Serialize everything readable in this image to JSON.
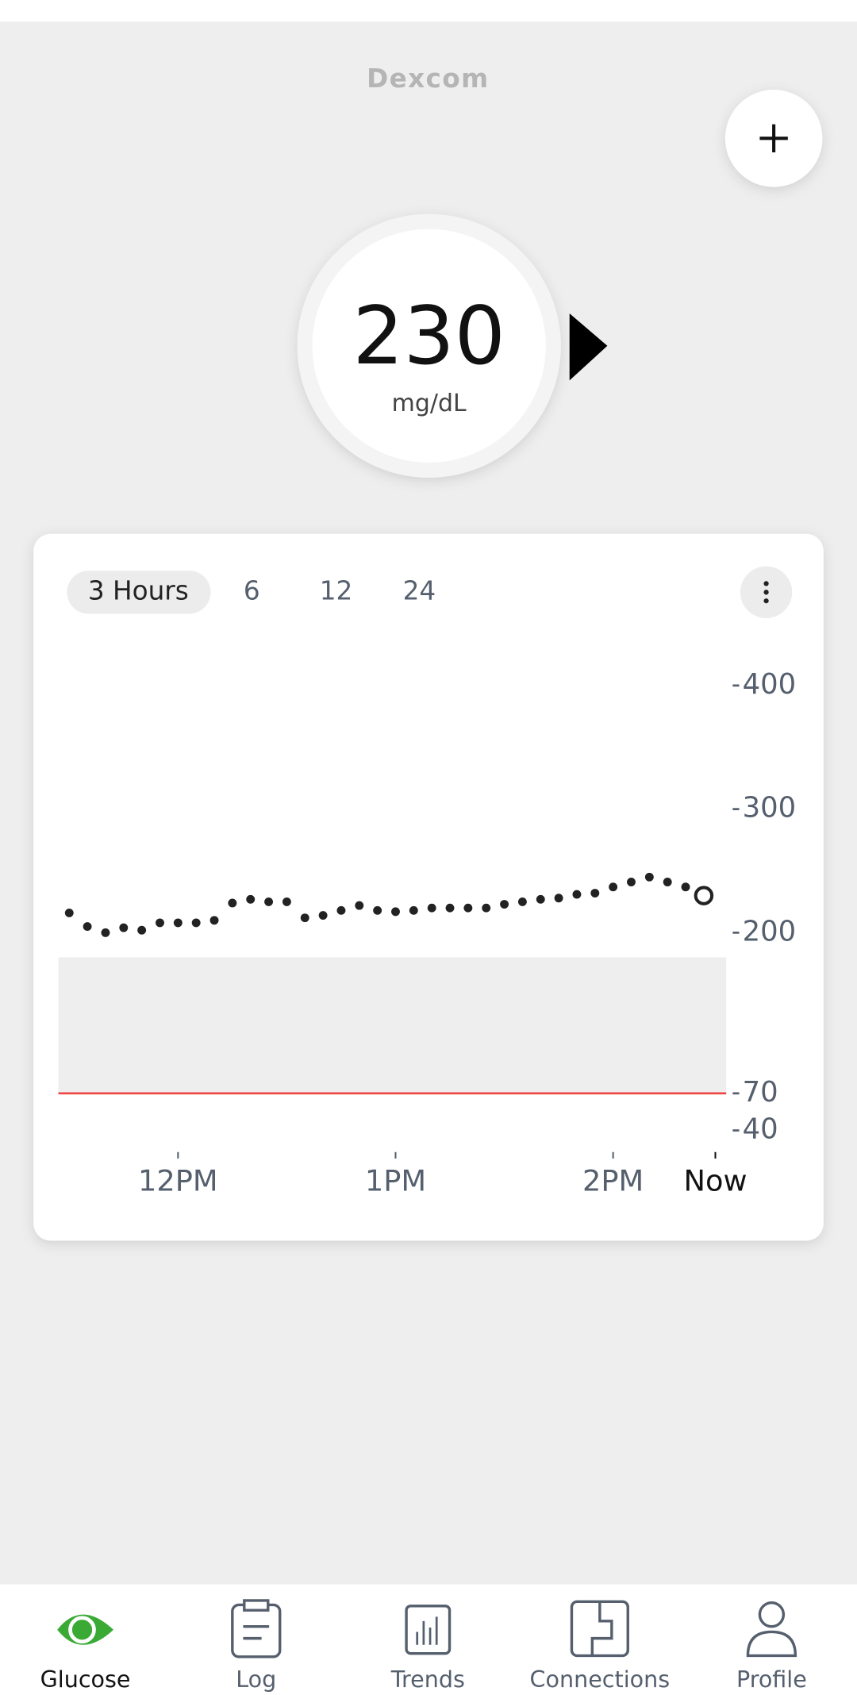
{
  "header": {
    "logo": "Dexcom"
  },
  "reading": {
    "value": 230,
    "unit": "mg/dL"
  },
  "range_tabs": [
    "3 Hours",
    "6",
    "12",
    "24"
  ],
  "chart_data": {
    "type": "scatter",
    "x": [
      11.5,
      11.5833,
      11.6667,
      11.75,
      11.8333,
      11.9167,
      12,
      12.0833,
      12.1667,
      12.25,
      12.3333,
      12.4167,
      12.5,
      12.5833,
      12.6667,
      12.75,
      12.8333,
      12.9167,
      13,
      13.0833,
      13.1667,
      13.25,
      13.3333,
      13.4167,
      13.5,
      13.5833,
      13.6667,
      13.75,
      13.8333,
      13.9167,
      14,
      14.0833,
      14.1667,
      14.25,
      14.3333,
      14.4167
    ],
    "values": [
      216,
      205,
      200,
      204,
      202,
      208,
      208,
      208,
      210,
      224,
      227,
      225,
      225,
      212,
      214,
      218,
      222,
      218,
      217,
      218,
      220,
      220,
      220,
      220,
      223,
      225,
      227,
      228,
      231,
      232,
      237,
      241,
      245,
      241,
      237,
      230
    ],
    "color": "#222222",
    "xlim": [
      11.45,
      14.52
    ],
    "ylim": [
      40,
      430
    ],
    "xticks": [
      {
        "value": 12,
        "label": "12PM"
      },
      {
        "value": 13,
        "label": "1PM"
      },
      {
        "value": 14,
        "label": "2PM"
      },
      {
        "value": 14.47,
        "label": "Now"
      }
    ],
    "yticks": [
      400,
      300,
      200,
      70,
      40
    ],
    "target_range": [
      70,
      180
    ],
    "target_color": "#eeeeee",
    "low_threshold": 70,
    "low_color": "#ef4444"
  },
  "nav": [
    "Glucose",
    "Log",
    "Trends",
    "Connections",
    "Profile"
  ]
}
